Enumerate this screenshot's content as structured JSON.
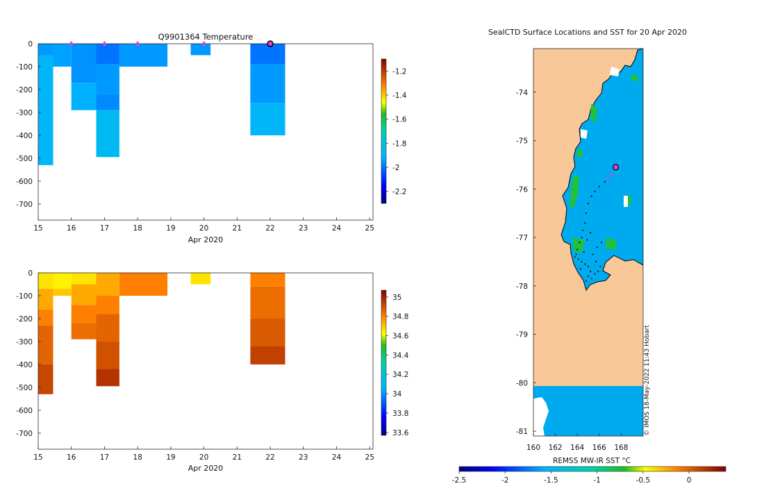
{
  "colors": {
    "land": "#f8c898",
    "ocean": "#00aaee",
    "marker": "#e040e0",
    "track": "#111111"
  },
  "chart_data": [
    {
      "type": "heatmap",
      "title": "Q9901364  Temperature",
      "xlabel": "Apr 2020",
      "x_ticks": [
        "15",
        "16",
        "17",
        "18",
        "19",
        "20",
        "21",
        "22",
        "23",
        "24",
        "25"
      ],
      "xlim": [
        15,
        25.1
      ],
      "y_ticks": [
        "0",
        "-100",
        "-200",
        "-300",
        "-400",
        "-500",
        "-600",
        "-700"
      ],
      "ylim": [
        -770,
        0
      ],
      "colorbar": {
        "ticks": [
          "-1.2",
          "-1.4",
          "-1.6",
          "-1.8",
          "-2",
          "-2.2"
        ],
        "tick_values": [
          -1.2,
          -1.4,
          -1.6,
          -1.8,
          -2,
          -2.2
        ],
        "range": [
          -2.3,
          -1.1
        ]
      },
      "profile_markers_x": [
        16,
        17,
        18,
        20
      ],
      "current_marker_x": 22,
      "cells": [
        {
          "x0": 15,
          "x1": 15.45,
          "d0": 0,
          "d1": 50,
          "v": -1.95
        },
        {
          "x0": 15,
          "x1": 15.45,
          "d0": 50,
          "d1": 530,
          "v": -1.9
        },
        {
          "x0": 15.45,
          "x1": 16.0,
          "d0": 0,
          "d1": 100,
          "v": -1.94
        },
        {
          "x0": 16.0,
          "x1": 16.75,
          "d0": 0,
          "d1": 170,
          "v": -1.96
        },
        {
          "x0": 16.0,
          "x1": 16.75,
          "d0": 170,
          "d1": 290,
          "v": -1.92
        },
        {
          "x0": 16.75,
          "x1": 17.45,
          "d0": 0,
          "d1": 90,
          "v": -2.0
        },
        {
          "x0": 16.75,
          "x1": 17.45,
          "d0": 90,
          "d1": 220,
          "v": -1.95
        },
        {
          "x0": 16.75,
          "x1": 17.45,
          "d0": 220,
          "d1": 290,
          "v": -1.97
        },
        {
          "x0": 16.75,
          "x1": 17.45,
          "d0": 290,
          "d1": 495,
          "v": -1.88
        },
        {
          "x0": 17.45,
          "x1": 18.9,
          "d0": 0,
          "d1": 100,
          "v": -1.95
        },
        {
          "x0": 19.6,
          "x1": 20.2,
          "d0": 0,
          "d1": 50,
          "v": -1.95
        },
        {
          "x0": 21.4,
          "x1": 22.45,
          "d0": 0,
          "d1": 90,
          "v": -2.0
        },
        {
          "x0": 21.4,
          "x1": 22.45,
          "d0": 90,
          "d1": 260,
          "v": -1.95
        },
        {
          "x0": 21.4,
          "x1": 22.45,
          "d0": 260,
          "d1": 400,
          "v": -1.9
        }
      ]
    },
    {
      "type": "heatmap",
      "title": "",
      "xlabel": "Apr 2020",
      "x_ticks": [
        "15",
        "16",
        "17",
        "18",
        "19",
        "20",
        "21",
        "22",
        "23",
        "24",
        "25"
      ],
      "xlim": [
        15,
        25.1
      ],
      "y_ticks": [
        "0",
        "-100",
        "-200",
        "-300",
        "-400",
        "-500",
        "-600",
        "-700"
      ],
      "ylim": [
        -770,
        0
      ],
      "colorbar": {
        "ticks": [
          "35",
          "34.8",
          "34.6",
          "34.4",
          "34.2",
          "34",
          "33.8",
          "33.6"
        ],
        "tick_values": [
          35,
          34.8,
          34.6,
          34.4,
          34.2,
          34,
          33.8,
          33.6
        ],
        "range": [
          33.57,
          35.07
        ]
      },
      "cells": [
        {
          "x0": 15,
          "x1": 15.45,
          "d0": 0,
          "d1": 70,
          "v": 34.66
        },
        {
          "x0": 15,
          "x1": 15.45,
          "d0": 70,
          "d1": 160,
          "v": 34.74
        },
        {
          "x0": 15,
          "x1": 15.45,
          "d0": 160,
          "d1": 230,
          "v": 34.8
        },
        {
          "x0": 15,
          "x1": 15.45,
          "d0": 230,
          "d1": 400,
          "v": 34.86
        },
        {
          "x0": 15,
          "x1": 15.45,
          "d0": 400,
          "d1": 530,
          "v": 34.92
        },
        {
          "x0": 15.45,
          "x1": 16.0,
          "d0": 0,
          "d1": 70,
          "v": 34.64
        },
        {
          "x0": 15.45,
          "x1": 16.0,
          "d0": 70,
          "d1": 100,
          "v": 34.7
        },
        {
          "x0": 16.0,
          "x1": 16.75,
          "d0": 0,
          "d1": 50,
          "v": 34.66
        },
        {
          "x0": 16.0,
          "x1": 16.75,
          "d0": 50,
          "d1": 140,
          "v": 34.74
        },
        {
          "x0": 16.0,
          "x1": 16.75,
          "d0": 140,
          "d1": 220,
          "v": 34.8
        },
        {
          "x0": 16.0,
          "x1": 16.75,
          "d0": 220,
          "d1": 290,
          "v": 34.84
        },
        {
          "x0": 16.75,
          "x1": 17.45,
          "d0": 0,
          "d1": 100,
          "v": 34.74
        },
        {
          "x0": 16.75,
          "x1": 17.45,
          "d0": 100,
          "d1": 180,
          "v": 34.8
        },
        {
          "x0": 16.75,
          "x1": 17.45,
          "d0": 180,
          "d1": 300,
          "v": 34.86
        },
        {
          "x0": 16.75,
          "x1": 17.45,
          "d0": 300,
          "d1": 420,
          "v": 34.9
        },
        {
          "x0": 16.75,
          "x1": 17.45,
          "d0": 420,
          "d1": 495,
          "v": 34.96
        },
        {
          "x0": 17.45,
          "x1": 18.9,
          "d0": 0,
          "d1": 100,
          "v": 34.8
        },
        {
          "x0": 19.6,
          "x1": 20.2,
          "d0": 0,
          "d1": 50,
          "v": 34.66
        },
        {
          "x0": 21.4,
          "x1": 22.45,
          "d0": 0,
          "d1": 60,
          "v": 34.8
        },
        {
          "x0": 21.4,
          "x1": 22.45,
          "d0": 60,
          "d1": 200,
          "v": 34.84
        },
        {
          "x0": 21.4,
          "x1": 22.45,
          "d0": 200,
          "d1": 320,
          "v": 34.88
        },
        {
          "x0": 21.4,
          "x1": 22.45,
          "d0": 320,
          "d1": 400,
          "v": 34.93
        }
      ]
    },
    {
      "type": "map",
      "title": "SealCTD Surface Locations and SST for 20 Apr 2020",
      "xlabel": "REMSS MW-IR SST °C",
      "lon_ticks": [
        "160",
        "162",
        "164",
        "166",
        "168"
      ],
      "lon_range": [
        160,
        170
      ],
      "lat_ticks": [
        "-74",
        "-75",
        "-76",
        "-77",
        "-78",
        "-79",
        "-80",
        "-81"
      ],
      "lat_range": [
        -81.1,
        -73.1
      ],
      "colorbar": {
        "ticks": [
          "-2.5",
          "-2",
          "-1.5",
          "-1",
          "-0.5",
          "0"
        ],
        "tick_values": [
          -2.5,
          -2,
          -1.5,
          -1,
          -0.5,
          0
        ],
        "range": [
          -2.5,
          0.4
        ]
      },
      "current_location": {
        "lon": 167.5,
        "lat": -75.55
      },
      "recent_locations": [
        {
          "lon": 167.1,
          "lat": -75.7
        },
        {
          "lon": 166.8,
          "lat": -75.8
        }
      ],
      "track": [
        {
          "lon": 166.5,
          "lat": -75.85
        },
        {
          "lon": 166.0,
          "lat": -75.95
        },
        {
          "lon": 165.6,
          "lat": -76.05
        },
        {
          "lon": 165.3,
          "lat": -76.15
        },
        {
          "lon": 165.0,
          "lat": -76.3
        },
        {
          "lon": 164.8,
          "lat": -76.5
        },
        {
          "lon": 164.7,
          "lat": -76.7
        },
        {
          "lon": 164.5,
          "lat": -76.85
        },
        {
          "lon": 164.4,
          "lat": -77.0
        },
        {
          "lon": 164.2,
          "lat": -77.1
        },
        {
          "lon": 164.0,
          "lat": -77.25
        },
        {
          "lon": 163.9,
          "lat": -77.35
        },
        {
          "lon": 164.1,
          "lat": -77.45
        },
        {
          "lon": 164.4,
          "lat": -77.5
        },
        {
          "lon": 164.7,
          "lat": -77.55
        },
        {
          "lon": 165.0,
          "lat": -77.6
        },
        {
          "lon": 165.2,
          "lat": -77.7
        },
        {
          "lon": 165.0,
          "lat": -77.8
        },
        {
          "lon": 164.8,
          "lat": -77.9
        },
        {
          "lon": 165.3,
          "lat": -77.85
        },
        {
          "lon": 165.6,
          "lat": -77.75
        },
        {
          "lon": 165.9,
          "lat": -77.7
        },
        {
          "lon": 166.1,
          "lat": -77.6
        },
        {
          "lon": 165.7,
          "lat": -77.5
        },
        {
          "lon": 165.4,
          "lat": -77.35
        },
        {
          "lon": 165.8,
          "lat": -77.2
        },
        {
          "lon": 166.2,
          "lat": -77.1
        },
        {
          "lon": 164.6,
          "lat": -77.3
        },
        {
          "lon": 164.3,
          "lat": -77.65
        },
        {
          "lon": 163.8,
          "lat": -77.4
        },
        {
          "lon": 164.9,
          "lat": -77.05
        },
        {
          "lon": 165.2,
          "lat": -76.9
        }
      ]
    }
  ],
  "footer": {
    "watermark": "© IMOS 18-May-2022 11:43 Hobart"
  }
}
